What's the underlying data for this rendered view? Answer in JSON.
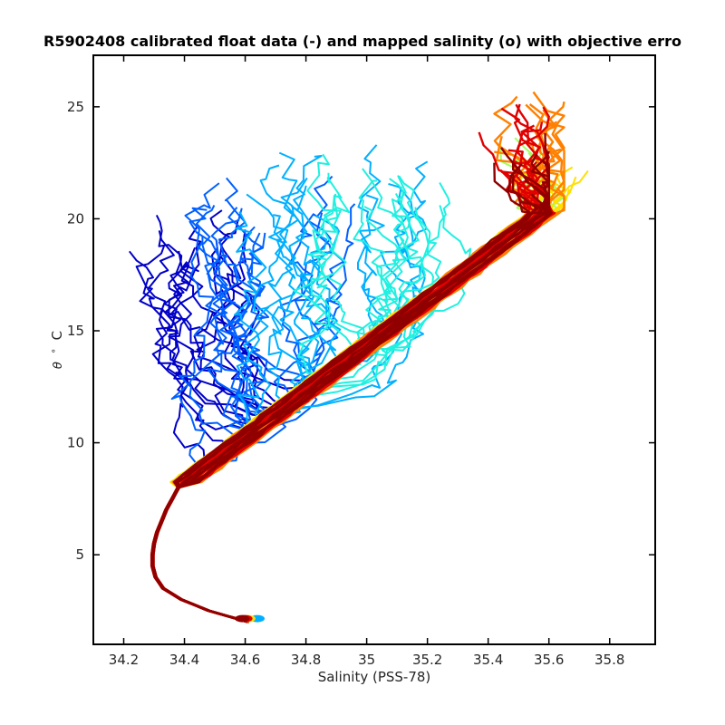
{
  "chart_data": {
    "type": "line",
    "title": "R5902408 calibrated float data (-) and mapped salinity (o) with objective erro",
    "xlabel": "Salinity (PSS-78)",
    "ylabel_symbol": "θ",
    "ylabel_unit": "C",
    "xlim": [
      34.1,
      35.95
    ],
    "ylim": [
      1,
      27.3
    ],
    "xticks": [
      "34.2",
      "34.4",
      "34.6",
      "34.8",
      "35",
      "35.2",
      "35.4",
      "35.6",
      "35.8"
    ],
    "yticks": [
      "5",
      "10",
      "15",
      "20",
      "25"
    ],
    "colormap": "jet",
    "grid": false,
    "legend": "none",
    "deep_branch": {
      "theta": [
        2.0,
        2.5,
        3.0,
        3.5,
        4.0,
        4.5,
        5.0,
        5.5,
        6.0,
        6.5,
        7.0,
        7.5,
        8.0
      ],
      "salinity": [
        34.61,
        34.48,
        34.39,
        34.33,
        34.305,
        34.295,
        34.295,
        34.3,
        34.31,
        34.325,
        34.34,
        34.36,
        34.38
      ]
    },
    "series_groups": [
      {
        "group": "early (dark blue)",
        "color": "#0000c8",
        "sal_range": [
          34.25,
          34.55
        ],
        "theta_range": [
          9,
          20.8
        ]
      },
      {
        "group": "blue",
        "color": "#0060ff",
        "sal_range": [
          34.4,
          34.9
        ],
        "theta_range": [
          9,
          22
        ]
      },
      {
        "group": "light blue",
        "color": "#00b0ff",
        "sal_range": [
          34.55,
          35.2
        ],
        "theta_range": [
          10,
          23.2
        ]
      },
      {
        "group": "cyan",
        "color": "#20f0e0",
        "sal_range": [
          34.8,
          35.3
        ],
        "theta_range": [
          12,
          23.5
        ]
      },
      {
        "group": "green-yellow",
        "color": "#a0ff60",
        "sal_range": [
          34.4,
          35.8
        ],
        "theta_range": [
          7,
          24
        ]
      },
      {
        "group": "yellow",
        "color": "#ffe000",
        "sal_range": [
          34.35,
          35.75
        ],
        "theta_range": [
          7,
          23
        ]
      },
      {
        "group": "orange",
        "color": "#ff8000",
        "sal_range": [
          34.5,
          35.65
        ],
        "theta_range": [
          9,
          26.2
        ]
      },
      {
        "group": "red",
        "color": "#e00000",
        "sal_range": [
          34.4,
          35.6
        ],
        "theta_range": [
          8,
          25.5
        ]
      },
      {
        "group": "dark red",
        "color": "#900000",
        "sal_range": [
          34.4,
          35.6
        ],
        "theta_range": [
          8,
          24
        ]
      }
    ]
  }
}
